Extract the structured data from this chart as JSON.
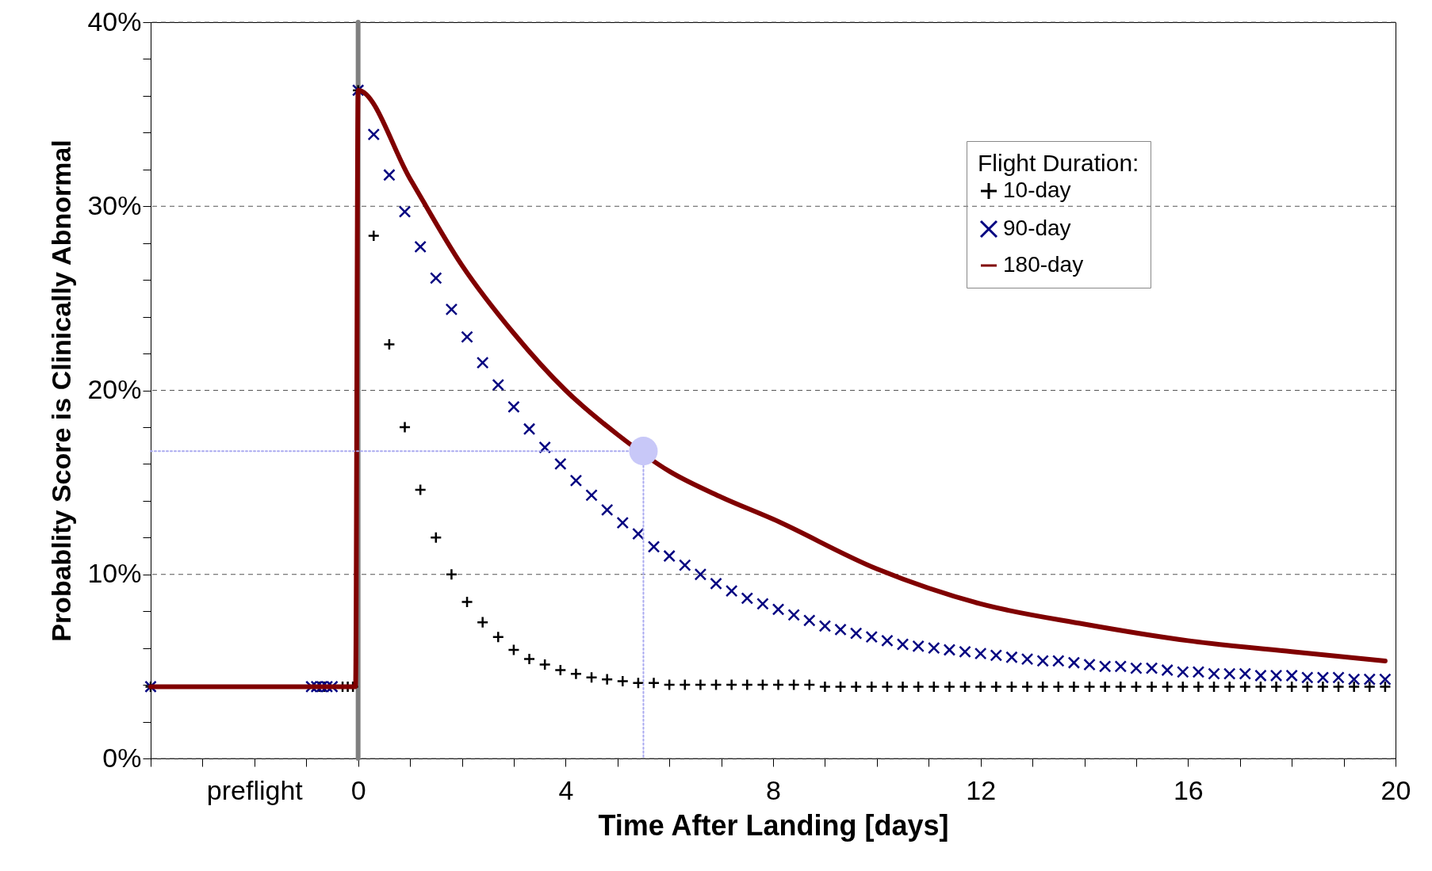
{
  "chart_data": {
    "type": "scatter",
    "xlabel": "Time After Landing [days]",
    "ylabel": "Probablity Score is Clinically Abnormal",
    "legend_title": "Flight Duration:",
    "legend": "top right",
    "grid": "y",
    "xlim": [
      -4,
      20
    ],
    "ylim": [
      0,
      40
    ],
    "xticks": [
      {
        "value": -4,
        "label": null
      },
      {
        "value": -3,
        "label": null
      },
      {
        "value": -2,
        "label": "preflight"
      },
      {
        "value": -1,
        "label": null
      },
      0,
      {
        "value": 1,
        "label": null
      },
      {
        "value": 2,
        "label": null
      },
      {
        "value": 3,
        "label": null
      },
      4,
      {
        "value": 5,
        "label": null
      },
      {
        "value": 6,
        "label": null
      },
      {
        "value": 7,
        "label": null
      },
      8,
      {
        "value": 9,
        "label": null
      },
      {
        "value": 10,
        "label": null
      },
      {
        "value": 11,
        "label": null
      },
      12,
      {
        "value": 13,
        "label": null
      },
      {
        "value": 14,
        "label": null
      },
      {
        "value": 15,
        "label": null
      },
      16,
      {
        "value": 17,
        "label": null
      },
      {
        "value": 18,
        "label": null
      },
      {
        "value": 19,
        "label": null
      },
      20
    ],
    "yticks": [
      {
        "value": 0,
        "label": "0%"
      },
      {
        "value": 2,
        "label": null
      },
      {
        "value": 4,
        "label": null
      },
      {
        "value": 6,
        "label": null
      },
      {
        "value": 8,
        "label": null
      },
      {
        "value": 10,
        "label": "10%"
      },
      {
        "value": 12,
        "label": null
      },
      {
        "value": 14,
        "label": null
      },
      {
        "value": 16,
        "label": null
      },
      {
        "value": 18,
        "label": null
      },
      {
        "value": 20,
        "label": "20%"
      },
      {
        "value": 22,
        "label": null
      },
      {
        "value": 24,
        "label": null
      },
      {
        "value": 26,
        "label": null
      },
      {
        "value": 28,
        "label": null
      },
      {
        "value": 30,
        "label": "30%"
      },
      {
        "value": 32,
        "label": null
      },
      {
        "value": 34,
        "label": null
      },
      {
        "value": 36,
        "label": null
      },
      {
        "value": 38,
        "label": null
      },
      {
        "value": 40,
        "label": "40%"
      }
    ],
    "ref_lines": [
      {
        "axis": "x",
        "value": 0,
        "color": "#808080"
      }
    ],
    "series": [
      {
        "name": "10-day",
        "marker": "cross",
        "color": "#000000",
        "x": [
          -4,
          -0.75,
          -0.65,
          -0.3,
          -0.2,
          -0.1,
          0,
          0.3,
          0.6,
          0.9,
          1.2,
          1.5,
          1.8,
          2.1,
          2.4,
          2.7,
          3.0,
          3.3,
          3.6,
          3.9,
          4.2,
          4.5,
          4.8,
          5.1,
          5.4,
          5.7,
          6.0,
          6.3,
          6.6,
          6.9,
          7.2,
          7.5,
          7.8,
          8.1,
          8.4,
          8.7,
          9.0,
          9.3,
          9.6,
          9.9,
          10.2,
          10.5,
          10.8,
          11.1,
          11.4,
          11.7,
          12.0,
          12.3,
          12.6,
          12.9,
          13.2,
          13.5,
          13.8,
          14.1,
          14.4,
          14.7,
          15.0,
          15.3,
          15.6,
          15.9,
          16.2,
          16.5,
          16.8,
          17.1,
          17.4,
          17.7,
          18.0,
          18.3,
          18.6,
          18.9,
          19.2,
          19.5,
          19.8
        ],
        "values": [
          3.9,
          3.9,
          3.9,
          3.9,
          3.9,
          3.9,
          36.3,
          28.4,
          22.5,
          18.0,
          14.6,
          12.0,
          10.0,
          8.5,
          7.4,
          6.6,
          5.9,
          5.4,
          5.1,
          4.8,
          4.6,
          4.4,
          4.3,
          4.2,
          4.1,
          4.1,
          4.0,
          4.0,
          4.0,
          4.0,
          4.0,
          4.0,
          4.0,
          4.0,
          4.0,
          4.0,
          3.9,
          3.9,
          3.9,
          3.9,
          3.9,
          3.9,
          3.9,
          3.9,
          3.9,
          3.9,
          3.9,
          3.9,
          3.9,
          3.9,
          3.9,
          3.9,
          3.9,
          3.9,
          3.9,
          3.9,
          3.9,
          3.9,
          3.9,
          3.9,
          3.9,
          3.9,
          3.9,
          3.9,
          3.9,
          3.9,
          3.9,
          3.9,
          3.9,
          3.9,
          3.9,
          3.9,
          3.9
        ]
      },
      {
        "name": "90-day",
        "marker": "x",
        "color": "#000080",
        "x": [
          -4,
          -0.9,
          -0.8,
          -0.7,
          -0.6,
          -0.5,
          0,
          0.3,
          0.6,
          0.9,
          1.2,
          1.5,
          1.8,
          2.1,
          2.4,
          2.7,
          3.0,
          3.3,
          3.6,
          3.9,
          4.2,
          4.5,
          4.8,
          5.1,
          5.4,
          5.7,
          6.0,
          6.3,
          6.6,
          6.9,
          7.2,
          7.5,
          7.8,
          8.1,
          8.4,
          8.7,
          9.0,
          9.3,
          9.6,
          9.9,
          10.2,
          10.5,
          10.8,
          11.1,
          11.4,
          11.7,
          12.0,
          12.3,
          12.6,
          12.9,
          13.2,
          13.5,
          13.8,
          14.1,
          14.4,
          14.7,
          15.0,
          15.3,
          15.6,
          15.9,
          16.2,
          16.5,
          16.8,
          17.1,
          17.4,
          17.7,
          18.0,
          18.3,
          18.6,
          18.9,
          19.2,
          19.5,
          19.8
        ],
        "values": [
          3.9,
          3.9,
          3.9,
          3.9,
          3.9,
          3.9,
          36.3,
          33.9,
          31.7,
          29.7,
          27.8,
          26.1,
          24.4,
          22.9,
          21.5,
          20.3,
          19.1,
          17.9,
          16.9,
          16.0,
          15.1,
          14.3,
          13.5,
          12.8,
          12.2,
          11.5,
          11.0,
          10.5,
          10.0,
          9.5,
          9.1,
          8.7,
          8.4,
          8.1,
          7.8,
          7.5,
          7.2,
          7.0,
          6.8,
          6.6,
          6.4,
          6.2,
          6.1,
          6.0,
          5.9,
          5.8,
          5.7,
          5.6,
          5.5,
          5.4,
          5.3,
          5.3,
          5.2,
          5.1,
          5.0,
          5.0,
          4.9,
          4.9,
          4.8,
          4.7,
          4.7,
          4.6,
          4.6,
          4.6,
          4.5,
          4.5,
          4.5,
          4.4,
          4.4,
          4.4,
          4.3,
          4.3,
          4.3
        ]
      },
      {
        "name": "180-day",
        "type": "line",
        "color": "#800000",
        "x": [
          -4,
          -0.05,
          0,
          1,
          2,
          3,
          4,
          5,
          6,
          7,
          8,
          10,
          12,
          14,
          16,
          18,
          19.8
        ],
        "values": [
          3.9,
          3.9,
          36.3,
          31.5,
          26.8,
          23.1,
          20.0,
          17.6,
          15.6,
          14.2,
          13.0,
          10.3,
          8.4,
          7.3,
          6.4,
          5.8,
          5.3
        ]
      },
      {
        "type": "line",
        "line_style": "dotted",
        "color": "#aaaaf0",
        "x": [
          -4,
          5.5,
          5.5
        ],
        "values": [
          16.7,
          16.7,
          0
        ]
      },
      {
        "marker": "circle",
        "color": "#c8c8f8",
        "x": [
          5.5
        ],
        "values": [
          16.7
        ]
      }
    ]
  }
}
